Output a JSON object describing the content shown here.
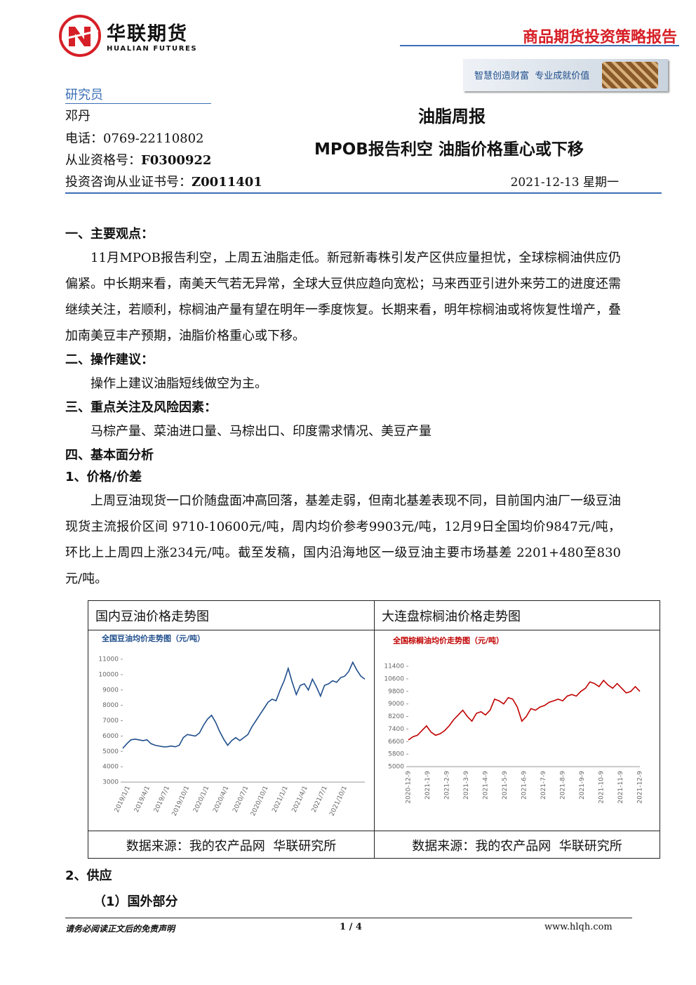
{
  "header": {
    "company": "华联期货",
    "company_en": "HUALIAN FUTURES",
    "report_type": "商品期货投资策略报告",
    "slogan": "智慧创造财富  专业成就价值"
  },
  "author": {
    "section": "研究员",
    "name": "邓丹",
    "phone_label": "电话：",
    "phone": "0769-22110802",
    "qualification_label": "从业资格号：",
    "qualification": "F0300922",
    "license_label": "投资咨询从业证书号：",
    "license": "Z0011401"
  },
  "title": "油脂周报",
  "subtitle": "MPOB报告利空 油脂价格重心或下移",
  "date": "2021-12-13 星期一",
  "sections": [
    {
      "heading": "一、主要观点：",
      "paragraphs": [
        "11月MPOB报告利空，上周五油脂走低。新冠新毒株引发产区供应量担忧，全球棕榈油供应仍偏紧。中长期来看，南美天气若无异常，全球大豆供应趋向宽松；马来西亚引进外来劳工的进度还需继续关注，若顺利，棕榈油产量有望在明年一季度恢复。长期来看，明年棕榈油或将恢复性增产，叠加南美豆丰产预期，油脂价格重心或下移。"
      ]
    },
    {
      "heading": "二、操作建议：",
      "paragraphs": [
        "操作上建议油脂短线做空为主。"
      ]
    },
    {
      "heading": "三、重点关注及风险因素：",
      "paragraphs": [
        "马棕产量、菜油进口量、马棕出口、印度需求情况、美豆产量"
      ]
    },
    {
      "heading": "四、基本面分析",
      "paragraphs": []
    },
    {
      "heading": "1、价格/价差",
      "paragraphs": [
        "上周豆油现货一口价随盘面冲高回落，基差走弱，但南北基差表现不同，目前国内油厂一级豆油现货主流报价区间 9710-10600元/吨，周内均价参考9903元/吨，12月9日全国均价9847元/吨，环比上上周四上涨234元/吨。截至发稿，国内沿海地区一级豆油主要市场基差 2201+480至830元/吨。"
      ]
    }
  ],
  "table": {
    "headers": [
      "国内豆油价格走势图",
      "大连盘棕榈油价格走势图"
    ],
    "charts": [
      {
        "type": "line",
        "title": "全国豆油均价走势图（元/吨）",
        "color": "#1f4e8c",
        "xtick_labels": [
          "2019/1/1",
          "2019/4/1",
          "2019/7/1",
          "2019/10/1",
          "2020/1/1",
          "2020/4/1",
          "2020/7/1",
          "2020/10/1",
          "2021/1/1",
          "2021/4/1",
          "2021/7/1",
          "2021/10/1"
        ],
        "values": [
          5200,
          5500,
          5750,
          5800,
          5750,
          5700,
          5750,
          5500,
          5400,
          5350,
          5300,
          5300,
          5350,
          5300,
          5400,
          5900,
          6100,
          6050,
          6000,
          6200,
          6700,
          7100,
          7350,
          6900,
          6300,
          5800,
          5400,
          5700,
          5900,
          5700,
          5900,
          6100,
          6600,
          7000,
          7400,
          7800,
          8200,
          8400,
          8300,
          9000,
          9600,
          10400,
          9500,
          8700,
          9300,
          9400,
          9000,
          9700,
          9200,
          8600,
          9300,
          9400,
          9600,
          9500,
          9800,
          9900,
          10200,
          10800,
          10300,
          9900,
          9700
        ],
        "ylim": [
          3000,
          11000
        ],
        "yticks": [
          3000,
          4000,
          5000,
          6000,
          7000,
          8000,
          9000,
          10000,
          11000
        ]
      },
      {
        "type": "line",
        "title": "全国棕榈油均价走势图（元/吨）",
        "color": "#c00000",
        "xtick_labels": [
          "2020-12-9",
          "2021-1-9",
          "2021-2-9",
          "2021-3-9",
          "2021-4-9",
          "2021-5-9",
          "2021-6-9",
          "2021-7-9",
          "2021-8-9",
          "2021-9-9",
          "2021-10-9",
          "2021-11-9",
          "2021-12-9"
        ],
        "values": [
          6700,
          6900,
          7000,
          7300,
          7600,
          7200,
          7000,
          7100,
          7300,
          7600,
          8000,
          8300,
          8600,
          8200,
          7900,
          8400,
          8500,
          8300,
          8600,
          9300,
          9200,
          9000,
          9400,
          9300,
          8800,
          7900,
          8200,
          8700,
          8600,
          8800,
          8900,
          9100,
          9200,
          9300,
          9200,
          9500,
          9600,
          9500,
          9800,
          10000,
          10400,
          10300,
          10100,
          10500,
          10200,
          10000,
          10300,
          10000,
          9700,
          9800,
          10100,
          9800
        ],
        "ylim": [
          5000,
          11400
        ],
        "yticks": [
          5000,
          5800,
          6600,
          7400,
          8200,
          9000,
          9800,
          10600,
          11400
        ]
      }
    ],
    "sources": [
      "数据来源：我的农产品网  华联研究所",
      "数据来源：我的农产品网  华联研究所"
    ]
  },
  "after_table": {
    "heading": "2、供应",
    "subheading": "（1）国外部分"
  },
  "footer": {
    "disclaimer": "请务必阅读正文后的免责声明",
    "page": "1 / 4",
    "website": "www.hlqh.com"
  }
}
